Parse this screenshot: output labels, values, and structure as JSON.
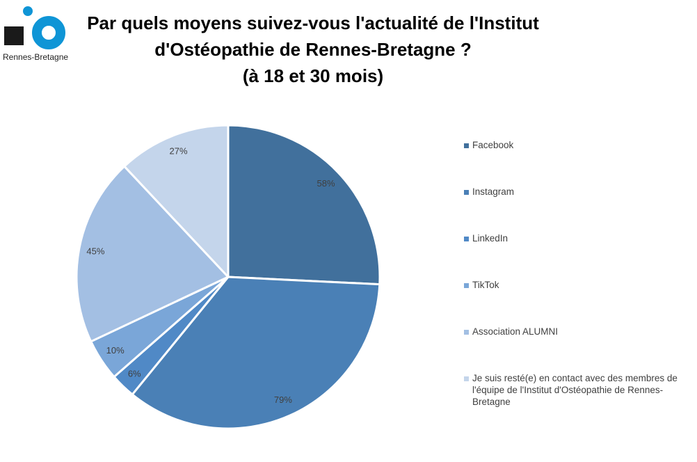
{
  "logo": {
    "text": "Rennes-Bretagne",
    "colors": {
      "blue": "#0f95d6",
      "black": "#1a1a1a"
    }
  },
  "title": {
    "lines": [
      "Par quels moyens suivez-vous l'actualité de l'Institut",
      "d'Ostéopathie de Rennes-Bretagne ?",
      "(à 18 et 30 mois)"
    ]
  },
  "chart_data": {
    "type": "pie",
    "title": "Par quels moyens suivez-vous l'actualité de l'Institut d'Ostéopathie de Rennes-Bretagne ? (à 18 et 30 mois)",
    "legend_position": "right",
    "categories": [
      "Facebook",
      "Instagram",
      "LinkedIn",
      "TikTok",
      "Association ALUMNI",
      "Je suis resté(e) en contact avec des membres de l'équipe de l'Institut d'Ostéopathie de Rennes-Bretagne"
    ],
    "values": [
      58,
      79,
      6,
      10,
      45,
      27
    ],
    "labels": [
      "58%",
      "79%",
      "6%",
      "10%",
      "45%",
      "27%"
    ],
    "colors": [
      "#41709c",
      "#4a80b6",
      "#5089c6",
      "#7aa6d8",
      "#a3bfe3",
      "#c4d5eb"
    ]
  }
}
